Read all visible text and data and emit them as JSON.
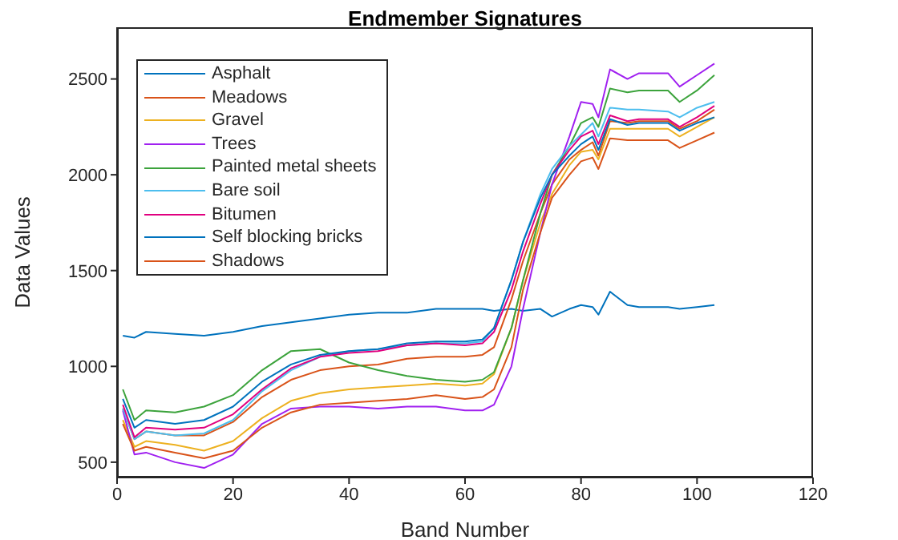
{
  "chart_data": {
    "type": "line",
    "title": "Endmember Signatures",
    "xlabel": "Band Number",
    "ylabel": "Data Values",
    "x": [
      1,
      3,
      5,
      10,
      15,
      20,
      25,
      30,
      35,
      40,
      45,
      50,
      55,
      60,
      63,
      65,
      68,
      70,
      73,
      75,
      78,
      80,
      82,
      83,
      85,
      88,
      90,
      95,
      97,
      100,
      103
    ],
    "series": [
      {
        "name": "Asphalt",
        "color": "#0072bd",
        "values": [
          1160,
          1150,
          1180,
          1170,
          1160,
          1180,
          1210,
          1230,
          1250,
          1270,
          1280,
          1280,
          1300,
          1300,
          1300,
          1290,
          1300,
          1290,
          1300,
          1260,
          1300,
          1320,
          1310,
          1270,
          1390,
          1320,
          1310,
          1310,
          1300,
          1310,
          1320
        ]
      },
      {
        "name": "Meadows",
        "color": "#d95319",
        "values": [
          780,
          620,
          660,
          640,
          640,
          710,
          840,
          930,
          980,
          1000,
          1010,
          1040,
          1050,
          1050,
          1060,
          1100,
          1350,
          1550,
          1800,
          1950,
          2080,
          2130,
          2170,
          2100,
          2280,
          2270,
          2280,
          2280,
          2240,
          2280,
          2340
        ]
      },
      {
        "name": "Gravel",
        "color": "#edb120",
        "values": [
          720,
          580,
          610,
          590,
          560,
          610,
          730,
          820,
          860,
          880,
          890,
          900,
          910,
          900,
          910,
          960,
          1200,
          1450,
          1750,
          1900,
          2050,
          2120,
          2130,
          2080,
          2240,
          2240,
          2240,
          2240,
          2200,
          2250,
          2300
        ]
      },
      {
        "name": "Trees",
        "color": "#a020f0",
        "values": [
          770,
          540,
          550,
          500,
          470,
          540,
          700,
          780,
          790,
          790,
          780,
          790,
          790,
          770,
          770,
          800,
          1000,
          1300,
          1700,
          1950,
          2200,
          2380,
          2370,
          2300,
          2550,
          2500,
          2530,
          2530,
          2460,
          2520,
          2580
        ]
      },
      {
        "name": "Painted metal sheets",
        "color": "#3ca33c",
        "values": [
          880,
          720,
          770,
          760,
          790,
          850,
          980,
          1080,
          1090,
          1020,
          980,
          950,
          930,
          920,
          930,
          970,
          1200,
          1450,
          1800,
          2000,
          2150,
          2270,
          2300,
          2250,
          2450,
          2430,
          2440,
          2440,
          2380,
          2440,
          2520
        ]
      },
      {
        "name": "Bare soil",
        "color": "#4dbeee",
        "values": [
          780,
          620,
          660,
          640,
          650,
          720,
          870,
          980,
          1050,
          1080,
          1090,
          1110,
          1120,
          1120,
          1130,
          1200,
          1450,
          1650,
          1900,
          2030,
          2150,
          2210,
          2270,
          2200,
          2350,
          2340,
          2340,
          2330,
          2300,
          2350,
          2380
        ]
      },
      {
        "name": "Bitumen",
        "color": "#e0007f",
        "values": [
          800,
          630,
          680,
          670,
          680,
          750,
          880,
          990,
          1050,
          1070,
          1080,
          1110,
          1120,
          1110,
          1120,
          1180,
          1400,
          1600,
          1850,
          2000,
          2130,
          2200,
          2230,
          2160,
          2310,
          2280,
          2290,
          2290,
          2250,
          2300,
          2360
        ]
      },
      {
        "name": "Self blocking bricks",
        "color": "#0072bd",
        "values": [
          830,
          680,
          720,
          700,
          720,
          790,
          920,
          1010,
          1060,
          1080,
          1090,
          1120,
          1130,
          1130,
          1140,
          1200,
          1450,
          1650,
          1880,
          2000,
          2100,
          2160,
          2200,
          2130,
          2290,
          2260,
          2270,
          2270,
          2230,
          2270,
          2300
        ]
      },
      {
        "name": "Shadows",
        "color": "#d95319",
        "values": [
          700,
          560,
          580,
          550,
          520,
          560,
          680,
          760,
          800,
          810,
          820,
          830,
          850,
          830,
          840,
          880,
          1100,
          1400,
          1700,
          1880,
          2000,
          2070,
          2090,
          2030,
          2190,
          2180,
          2180,
          2180,
          2140,
          2180,
          2220
        ]
      }
    ],
    "xlim": [
      0,
      120
    ],
    "xticks": [
      0,
      20,
      40,
      60,
      80,
      100,
      120
    ],
    "ylim": [
      420,
      2770
    ],
    "yticks": [
      500,
      1000,
      1500,
      2000,
      2500
    ],
    "grid": false,
    "legend": "top left"
  }
}
